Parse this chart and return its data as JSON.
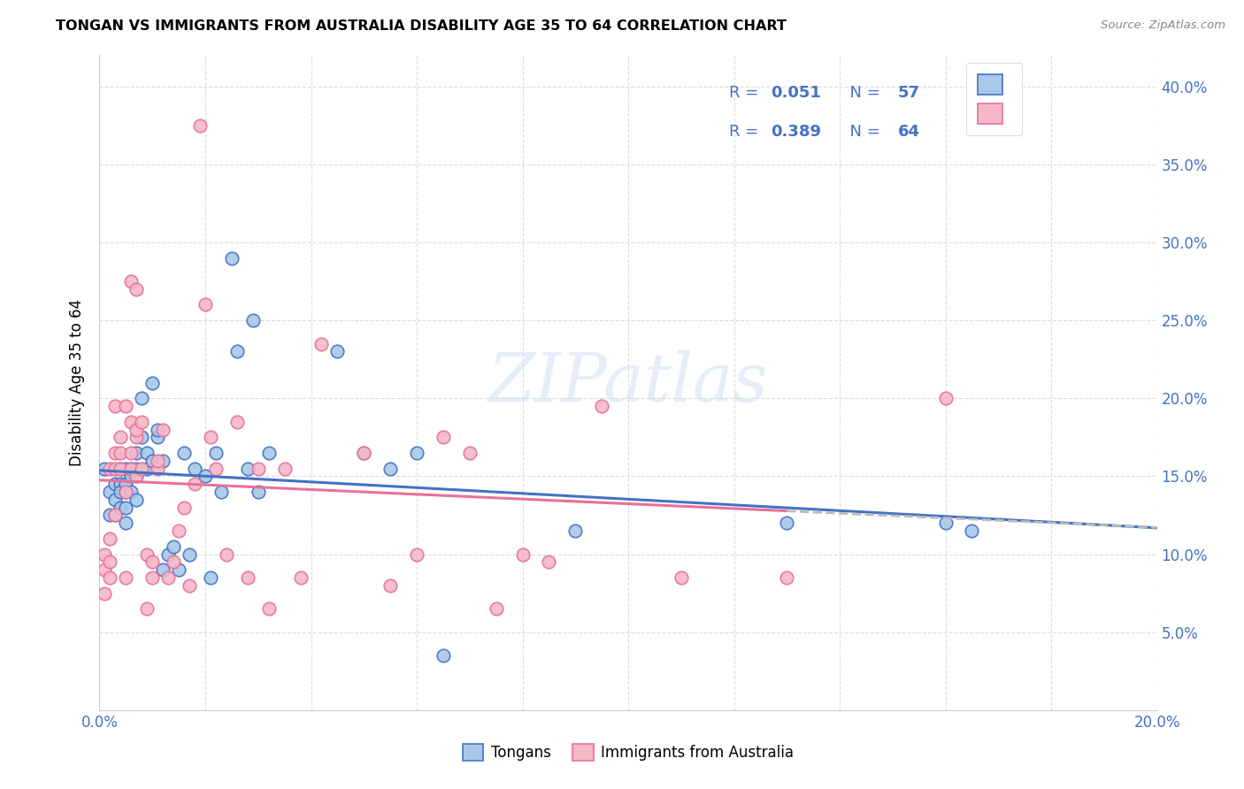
{
  "title": "TONGAN VS IMMIGRANTS FROM AUSTRALIA DISABILITY AGE 35 TO 64 CORRELATION CHART",
  "source": "Source: ZipAtlas.com",
  "ylabel": "Disability Age 35 to 64",
  "xlim": [
    0.0,
    0.2
  ],
  "ylim": [
    0.0,
    0.42
  ],
  "blue_R": 0.051,
  "blue_N": 57,
  "pink_R": 0.389,
  "pink_N": 64,
  "blue_color": "#A8C8E8",
  "pink_color": "#F4B8C8",
  "blue_edge_color": "#4472C4",
  "pink_edge_color": "#E8709A",
  "blue_line_color": "#4472C4",
  "pink_line_color": "#E8709A",
  "dash_line_color": "#BBBBBB",
  "watermark": "ZIPatlas",
  "legend_label_blue": "Tongans",
  "legend_label_pink": "Immigrants from Australia",
  "text_color_blue": "#4472C4",
  "grid_color": "#DDDDDD",
  "blue_scatter_x": [
    0.001,
    0.002,
    0.002,
    0.003,
    0.003,
    0.003,
    0.004,
    0.004,
    0.004,
    0.004,
    0.005,
    0.005,
    0.005,
    0.005,
    0.005,
    0.006,
    0.006,
    0.006,
    0.007,
    0.007,
    0.007,
    0.007,
    0.008,
    0.008,
    0.009,
    0.009,
    0.01,
    0.01,
    0.011,
    0.011,
    0.012,
    0.012,
    0.013,
    0.014,
    0.015,
    0.016,
    0.017,
    0.018,
    0.02,
    0.021,
    0.022,
    0.023,
    0.025,
    0.026,
    0.028,
    0.029,
    0.03,
    0.032,
    0.045,
    0.05,
    0.055,
    0.06,
    0.065,
    0.09,
    0.13,
    0.16,
    0.165
  ],
  "blue_scatter_y": [
    0.155,
    0.125,
    0.14,
    0.135,
    0.145,
    0.125,
    0.13,
    0.145,
    0.14,
    0.155,
    0.14,
    0.145,
    0.13,
    0.155,
    0.12,
    0.15,
    0.155,
    0.14,
    0.15,
    0.155,
    0.135,
    0.165,
    0.175,
    0.2,
    0.155,
    0.165,
    0.16,
    0.21,
    0.175,
    0.18,
    0.16,
    0.09,
    0.1,
    0.105,
    0.09,
    0.165,
    0.1,
    0.155,
    0.15,
    0.085,
    0.165,
    0.14,
    0.29,
    0.23,
    0.155,
    0.25,
    0.14,
    0.165,
    0.23,
    0.165,
    0.155,
    0.165,
    0.035,
    0.115,
    0.12,
    0.12,
    0.115
  ],
  "pink_scatter_x": [
    0.001,
    0.001,
    0.001,
    0.002,
    0.002,
    0.002,
    0.002,
    0.003,
    0.003,
    0.003,
    0.003,
    0.004,
    0.004,
    0.004,
    0.005,
    0.005,
    0.005,
    0.006,
    0.006,
    0.006,
    0.006,
    0.007,
    0.007,
    0.007,
    0.007,
    0.008,
    0.008,
    0.009,
    0.009,
    0.01,
    0.01,
    0.011,
    0.011,
    0.012,
    0.013,
    0.014,
    0.015,
    0.016,
    0.017,
    0.018,
    0.019,
    0.02,
    0.021,
    0.022,
    0.024,
    0.026,
    0.028,
    0.03,
    0.032,
    0.035,
    0.038,
    0.042,
    0.05,
    0.055,
    0.06,
    0.065,
    0.07,
    0.075,
    0.08,
    0.085,
    0.095,
    0.11,
    0.13,
    0.16
  ],
  "pink_scatter_y": [
    0.075,
    0.09,
    0.1,
    0.085,
    0.095,
    0.11,
    0.155,
    0.125,
    0.155,
    0.165,
    0.195,
    0.155,
    0.165,
    0.175,
    0.085,
    0.14,
    0.195,
    0.155,
    0.165,
    0.185,
    0.275,
    0.15,
    0.175,
    0.18,
    0.27,
    0.155,
    0.185,
    0.065,
    0.1,
    0.085,
    0.095,
    0.155,
    0.16,
    0.18,
    0.085,
    0.095,
    0.115,
    0.13,
    0.08,
    0.145,
    0.375,
    0.26,
    0.175,
    0.155,
    0.1,
    0.185,
    0.085,
    0.155,
    0.065,
    0.155,
    0.085,
    0.235,
    0.165,
    0.08,
    0.1,
    0.175,
    0.165,
    0.065,
    0.1,
    0.095,
    0.195,
    0.085,
    0.085,
    0.2
  ]
}
